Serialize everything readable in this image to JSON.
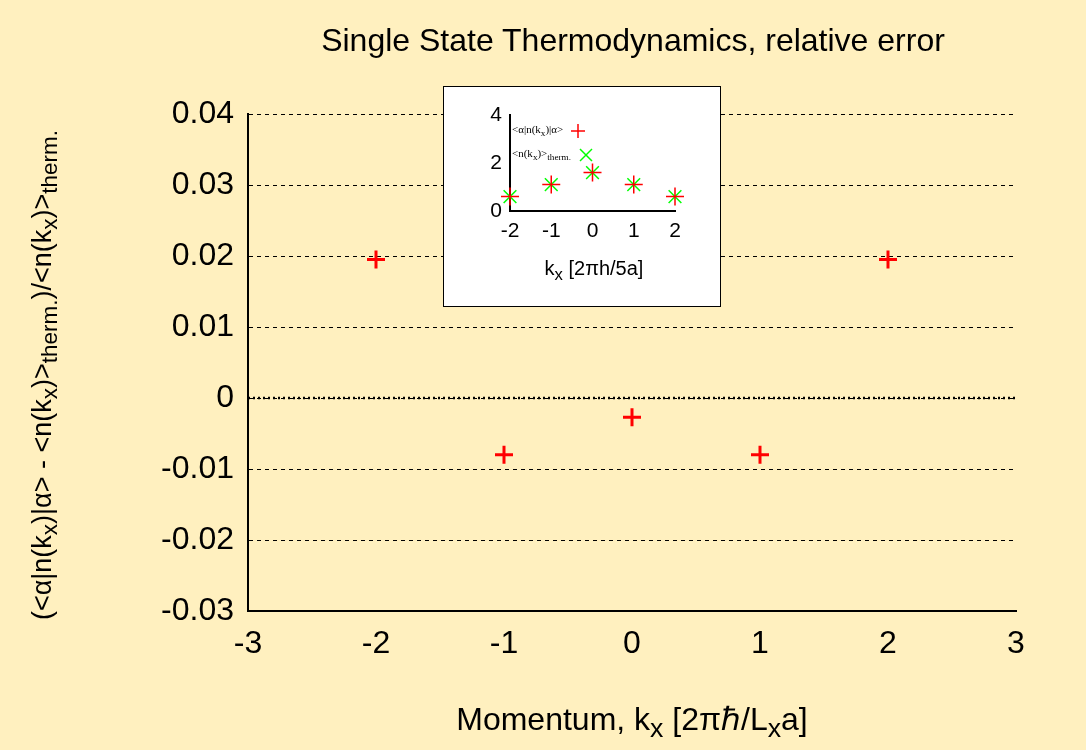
{
  "chart_data": [
    {
      "type": "scatter",
      "title": "Single State Thermodynamics, relative error",
      "xlabel": "Momentum, k$_{x}$ [2πℏ/L$_{x}$a]",
      "ylabel": "(<α|n(k$_{x}$)|α> - <n(k$_{x}$)>$_{therm.}$)/<n(k$_{x}$)>$_{therm.}$",
      "x": [
        -2,
        -1,
        0,
        1,
        2
      ],
      "series": [
        {
          "color": "#ff0000",
          "values": [
            0.0195,
            -0.008,
            -0.0027,
            -0.008,
            0.0195
          ]
        }
      ],
      "marker": "cross",
      "xlim": [
        -3,
        3
      ],
      "xticks": [
        -3,
        -2,
        -1,
        0,
        1,
        2,
        3
      ],
      "ylim": [
        -0.03,
        0.04
      ],
      "yticks": [
        -0.03,
        -0.02,
        -0.01,
        0,
        0.01,
        0.02,
        0.03,
        0.04
      ],
      "grid": "y",
      "ref_lines": [
        {
          "axis": "y",
          "value": 0,
          "line_style": "dotted"
        }
      ]
    },
    {
      "type": "scatter",
      "xlabel": "k$_{x}$ [2πh/5a]",
      "x": [
        -2,
        -1,
        0,
        1,
        2
      ],
      "series": [
        {
          "name": "<α|n(k$_{x}$)|α>",
          "color": "#ff0000",
          "values": [
            0.6,
            1.1,
            1.6,
            1.1,
            0.6
          ]
        },
        {
          "name": "<n(k$_{x}$)>$_{therm.}$",
          "color": "#00ff00",
          "values": [
            0.6,
            1.1,
            1.6,
            1.1,
            0.6
          ]
        }
      ],
      "marker": "cross",
      "xlim": [
        -2,
        2
      ],
      "xticks": [
        -2,
        -1,
        0,
        1,
        2
      ],
      "ylim": [
        0,
        4
      ],
      "yticks": [
        0,
        2,
        4
      ],
      "legend": "top left"
    }
  ]
}
